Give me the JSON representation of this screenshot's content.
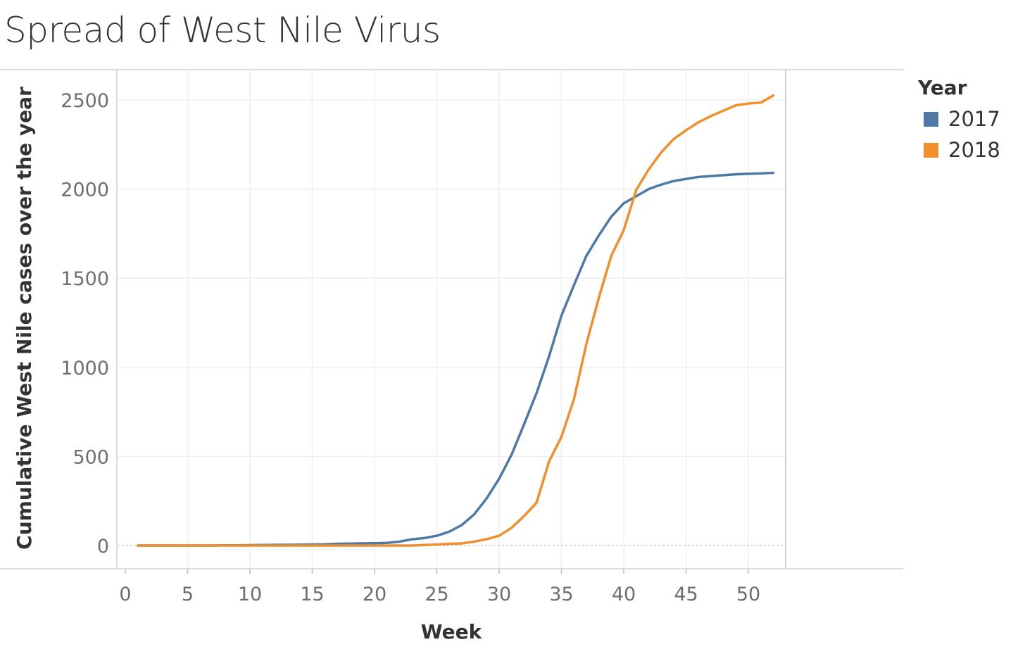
{
  "chart_data": {
    "type": "line",
    "title": "Spread of West Nile Virus",
    "xlabel": "Week",
    "ylabel": "Cumulative West Nile cases over the year",
    "xlim": [
      0,
      52
    ],
    "ylim": [
      0,
      2500
    ],
    "x_ticks": [
      0,
      5,
      10,
      15,
      20,
      25,
      30,
      35,
      40,
      45,
      50
    ],
    "y_ticks": [
      0,
      500,
      1000,
      1500,
      2000,
      2500
    ],
    "grid": true,
    "legend_title": "Year",
    "legend_position": "right",
    "x": [
      1,
      2,
      3,
      4,
      5,
      6,
      7,
      8,
      9,
      10,
      11,
      12,
      13,
      14,
      15,
      16,
      17,
      18,
      19,
      20,
      21,
      22,
      23,
      24,
      25,
      26,
      27,
      28,
      29,
      30,
      31,
      32,
      33,
      34,
      35,
      36,
      37,
      38,
      39,
      40,
      41,
      42,
      43,
      44,
      45,
      46,
      47,
      48,
      49,
      50,
      51,
      52
    ],
    "series": [
      {
        "name": "2017",
        "color": "#4e79a7",
        "values": [
          0,
          0,
          0,
          0,
          0,
          0,
          0,
          1,
          1,
          2,
          3,
          4,
          4,
          5,
          6,
          7,
          10,
          11,
          12,
          13,
          15,
          22,
          35,
          42,
          55,
          78,
          115,
          175,
          265,
          375,
          510,
          680,
          855,
          1060,
          1290,
          1460,
          1625,
          1740,
          1845,
          1920,
          1960,
          2000,
          2025,
          2045,
          2057,
          2068,
          2073,
          2078,
          2083,
          2086,
          2088,
          2091
        ]
      },
      {
        "name": "2018",
        "color": "#f28e2b",
        "values": [
          0,
          0,
          0,
          0,
          0,
          0,
          0,
          0,
          0,
          0,
          0,
          0,
          0,
          0,
          0,
          0,
          0,
          0,
          0,
          0,
          0,
          0,
          0,
          3,
          6,
          10,
          12,
          22,
          36,
          55,
          100,
          165,
          240,
          470,
          610,
          820,
          1130,
          1390,
          1625,
          1770,
          1995,
          2110,
          2205,
          2280,
          2330,
          2375,
          2410,
          2440,
          2470,
          2480,
          2485,
          2525
        ]
      }
    ]
  }
}
